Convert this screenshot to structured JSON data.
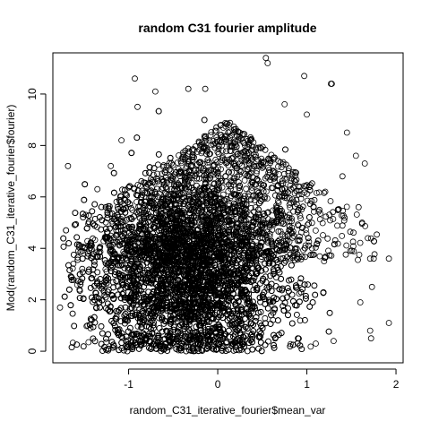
{
  "chart_data": {
    "type": "scatter",
    "title": "random C31 fourier amplitude",
    "xlabel": "random_C31_iterative_fourier$mean_var",
    "ylabel": "Mod(random_C31_iterative_fourier$fourier)",
    "xlim": [
      -1.85,
      2.08
    ],
    "ylim": [
      -0.45,
      11.6
    ],
    "x_ticks": [
      -1,
      0,
      1,
      2
    ],
    "y_ticks": [
      0,
      2,
      4,
      6,
      8,
      10
    ],
    "x_tick_labels": [
      "-1",
      "0",
      "1",
      "2"
    ],
    "y_tick_labels": [
      "0",
      "2",
      "4",
      "6",
      "8",
      "10"
    ],
    "marker": "open-circle",
    "grid": false,
    "legend": "none",
    "colors": {
      "points": "#000000",
      "background": "#ffffff"
    },
    "cluster_summary": {
      "x_center": -0.35,
      "x_spread": 0.55,
      "y_center": 2.9,
      "y_spread": 1.7,
      "y_min": 0
    },
    "notable_points": [
      {
        "x": 0.54,
        "y": 11.4
      },
      {
        "x": 0.56,
        "y": 11.2
      },
      {
        "x": -0.93,
        "y": 10.6
      },
      {
        "x": 0.97,
        "y": 10.7
      },
      {
        "x": 1.27,
        "y": 10.4
      },
      {
        "x": 1.28,
        "y": 10.4
      },
      {
        "x": -0.7,
        "y": 10.1
      },
      {
        "x": -0.33,
        "y": 10.2
      },
      {
        "x": -0.14,
        "y": 10.2
      },
      {
        "x": -1.68,
        "y": 7.2
      },
      {
        "x": -1.77,
        "y": 1.7
      },
      {
        "x": 1.92,
        "y": 3.6
      },
      {
        "x": 1.92,
        "y": 1.1
      },
      {
        "x": 1.75,
        "y": 3.6
      },
      {
        "x": 1.71,
        "y": 3.6
      },
      {
        "x": 1.71,
        "y": 0.8
      },
      {
        "x": 1.72,
        "y": 0.5
      },
      {
        "x": 1.65,
        "y": 7.3
      },
      {
        "x": 1.55,
        "y": 7.6
      },
      {
        "x": 1.58,
        "y": 5.6
      },
      {
        "x": 1.62,
        "y": 5.0
      },
      {
        "x": 1.73,
        "y": 2.5
      },
      {
        "x": 1.6,
        "y": 1.9
      },
      {
        "x": -1.52,
        "y": 3.2
      },
      {
        "x": -1.62,
        "y": 3.4
      },
      {
        "x": -1.55,
        "y": 2.4
      },
      {
        "x": -1.46,
        "y": 1.0
      },
      {
        "x": -1.45,
        "y": 0.35
      },
      {
        "x": -1.25,
        "y": 0.35
      },
      {
        "x": -1.48,
        "y": 5.3
      },
      {
        "x": -1.35,
        "y": 6.3
      },
      {
        "x": -1.2,
        "y": 7.2
      },
      {
        "x": -1.08,
        "y": 8.2
      },
      {
        "x": -0.9,
        "y": 9.5
      },
      {
        "x": 0.75,
        "y": 9.6
      },
      {
        "x": 1.0,
        "y": 9.2
      },
      {
        "x": 1.45,
        "y": 8.5
      },
      {
        "x": 1.4,
        "y": 6.8
      },
      {
        "x": 0.9,
        "y": 0.5
      },
      {
        "x": 1.3,
        "y": 0.4
      },
      {
        "x": 1.1,
        "y": 0.3
      },
      {
        "x": -0.95,
        "y": 0.25
      }
    ]
  }
}
